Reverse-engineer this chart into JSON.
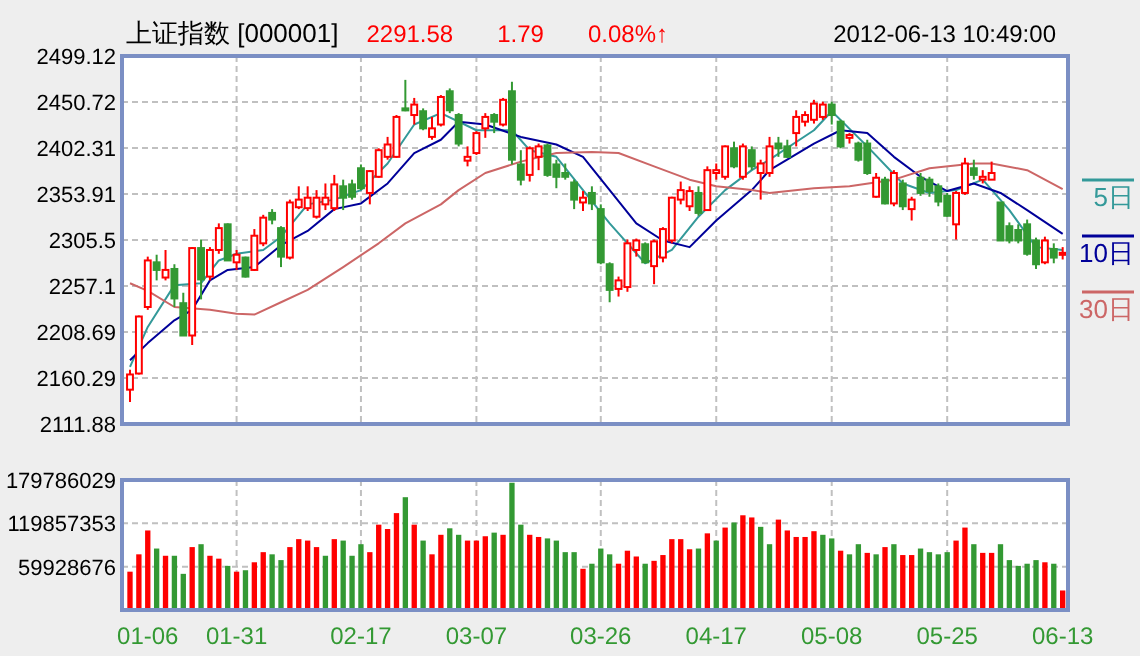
{
  "chart_data": [
    {
      "type": "candlestick",
      "title": "上证指数 [000001]",
      "annotations": [
        "2291.58",
        "1.79",
        "0.08%↑",
        "2012-06-13 10:49:00"
      ],
      "categories": [
        null,
        null,
        null,
        null,
        null,
        null,
        null,
        null,
        null,
        null,
        null,
        null,
        null,
        null,
        null,
        null,
        null,
        null,
        null,
        null,
        null,
        null,
        null,
        null,
        null,
        null,
        null,
        null,
        null,
        null,
        null,
        null,
        null,
        null,
        null,
        null,
        null,
        null,
        null,
        null,
        null,
        null,
        null,
        null,
        null,
        null,
        null,
        null,
        null,
        null,
        null,
        null,
        null,
        null,
        null,
        null,
        null,
        null,
        null,
        null,
        null,
        null,
        null,
        null,
        null,
        null,
        null,
        null,
        null,
        null,
        null,
        null,
        null,
        null,
        null,
        null,
        null,
        null,
        null,
        null,
        null,
        null,
        null,
        null,
        null,
        null,
        null,
        null,
        null,
        null,
        null,
        null,
        null,
        null,
        null,
        null,
        null,
        null,
        null,
        null,
        null,
        null,
        null,
        null,
        null,
        null
      ],
      "ohlc": [
        [
          2148,
          2169,
          2135,
          2164
        ],
        [
          2165,
          2226,
          2164,
          2225
        ],
        [
          2235,
          2288,
          2232,
          2284
        ],
        [
          2282,
          2290,
          2263,
          2274
        ],
        [
          2266,
          2295,
          2263,
          2274
        ],
        [
          2275,
          2280,
          2235,
          2244
        ],
        [
          2239,
          2250,
          2205,
          2205
        ],
        [
          2205,
          2298,
          2195,
          2297
        ],
        [
          2297,
          2306,
          2243,
          2264
        ],
        [
          2267,
          2298,
          2263,
          2295
        ],
        [
          2295,
          2323,
          2291,
          2318
        ],
        [
          2322,
          2323,
          2284,
          2284
        ],
        [
          2282,
          2295,
          2274,
          2290
        ],
        [
          2287,
          2288,
          2266,
          2267
        ],
        [
          2274,
          2317,
          2273,
          2310
        ],
        [
          2302,
          2332,
          2299,
          2329
        ],
        [
          2334,
          2338,
          2322,
          2327
        ],
        [
          2318,
          2320,
          2277,
          2288
        ],
        [
          2287,
          2348,
          2285,
          2345
        ],
        [
          2340,
          2362,
          2338,
          2348
        ],
        [
          2339,
          2362,
          2336,
          2350
        ],
        [
          2330,
          2358,
          2328,
          2350
        ],
        [
          2343,
          2365,
          2337,
          2350
        ],
        [
          2339,
          2374,
          2336,
          2364
        ],
        [
          2362,
          2369,
          2337,
          2350
        ],
        [
          2364,
          2369,
          2348,
          2351
        ],
        [
          2381,
          2385,
          2358,
          2360
        ],
        [
          2355,
          2379,
          2343,
          2378
        ],
        [
          2372,
          2402,
          2371,
          2400
        ],
        [
          2393,
          2414,
          2390,
          2406
        ],
        [
          2393,
          2437,
          2392,
          2435
        ],
        [
          2444,
          2474,
          2441,
          2442
        ],
        [
          2437,
          2455,
          2427,
          2448
        ],
        [
          2441,
          2444,
          2421,
          2423
        ],
        [
          2414,
          2435,
          2411,
          2423
        ],
        [
          2427,
          2458,
          2425,
          2456
        ],
        [
          2462,
          2465,
          2439,
          2442
        ],
        [
          2437,
          2439,
          2404,
          2407
        ],
        [
          2389,
          2404,
          2383,
          2393
        ],
        [
          2397,
          2420,
          2395,
          2418
        ],
        [
          2423,
          2439,
          2413,
          2435
        ],
        [
          2437,
          2439,
          2418,
          2430
        ],
        [
          2427,
          2455,
          2425,
          2453
        ],
        [
          2462,
          2472,
          2385,
          2390
        ],
        [
          2385,
          2400,
          2363,
          2369
        ],
        [
          2374,
          2404,
          2367,
          2402
        ],
        [
          2393,
          2407,
          2379,
          2404
        ],
        [
          2405,
          2407,
          2372,
          2374
        ],
        [
          2385,
          2390,
          2360,
          2372
        ],
        [
          2376,
          2386,
          2369,
          2372
        ],
        [
          2366,
          2369,
          2338,
          2348
        ],
        [
          2345,
          2357,
          2336,
          2350
        ],
        [
          2355,
          2362,
          2337,
          2344
        ],
        [
          2338,
          2343,
          2280,
          2282
        ],
        [
          2280,
          2282,
          2240,
          2253
        ],
        [
          2254,
          2267,
          2246,
          2263
        ],
        [
          2256,
          2306,
          2251,
          2302
        ],
        [
          2295,
          2307,
          2288,
          2305
        ],
        [
          2301,
          2303,
          2281,
          2282
        ],
        [
          2278,
          2306,
          2259,
          2304
        ],
        [
          2287,
          2319,
          2282,
          2317
        ],
        [
          2305,
          2351,
          2302,
          2350
        ],
        [
          2348,
          2367,
          2343,
          2358
        ],
        [
          2341,
          2362,
          2336,
          2357
        ],
        [
          2355,
          2362,
          2331,
          2334
        ],
        [
          2337,
          2383,
          2336,
          2379
        ],
        [
          2376,
          2386,
          2369,
          2379
        ],
        [
          2372,
          2405,
          2369,
          2404
        ],
        [
          2402,
          2409,
          2381,
          2383
        ],
        [
          2372,
          2407,
          2369,
          2404
        ],
        [
          2400,
          2404,
          2379,
          2383
        ],
        [
          2376,
          2390,
          2348,
          2386
        ],
        [
          2376,
          2414,
          2372,
          2404
        ],
        [
          2407,
          2414,
          2393,
          2402
        ],
        [
          2404,
          2411,
          2392,
          2393
        ],
        [
          2418,
          2442,
          2404,
          2435
        ],
        [
          2430,
          2441,
          2425,
          2437
        ],
        [
          2432,
          2453,
          2428,
          2449
        ],
        [
          2435,
          2451,
          2432,
          2448
        ],
        [
          2448,
          2451,
          2427,
          2437
        ],
        [
          2430,
          2432,
          2402,
          2404
        ],
        [
          2413,
          2418,
          2407,
          2416
        ],
        [
          2407,
          2409,
          2388,
          2390
        ],
        [
          2407,
          2411,
          2374,
          2376
        ],
        [
          2351,
          2376,
          2350,
          2371
        ],
        [
          2369,
          2372,
          2343,
          2344
        ],
        [
          2344,
          2379,
          2341,
          2376
        ],
        [
          2365,
          2369,
          2337,
          2341
        ],
        [
          2338,
          2351,
          2326,
          2348
        ],
        [
          2371,
          2376,
          2352,
          2355
        ],
        [
          2369,
          2372,
          2351,
          2357
        ],
        [
          2362,
          2365,
          2341,
          2346
        ],
        [
          2352,
          2355,
          2330,
          2331
        ],
        [
          2322,
          2357,
          2306,
          2355
        ],
        [
          2355,
          2392,
          2353,
          2386
        ],
        [
          2381,
          2390,
          2369,
          2374
        ],
        [
          2369,
          2379,
          2365,
          2372
        ],
        [
          2369,
          2388,
          2369,
          2376
        ],
        [
          2345,
          2345,
          2305,
          2305
        ],
        [
          2320,
          2324,
          2302,
          2305
        ],
        [
          2316,
          2322,
          2302,
          2305
        ],
        [
          2322,
          2327,
          2289,
          2291
        ],
        [
          2305,
          2308,
          2275,
          2280
        ],
        [
          2282,
          2309,
          2280,
          2305
        ],
        [
          2296,
          2302,
          2281,
          2287
        ],
        [
          2290,
          2298,
          2285,
          2292
        ]
      ],
      "colors": [
        "#ff0000",
        "#ff0000",
        "#ff0000",
        "#339933",
        "#ff0000",
        "#339933",
        "#339933",
        "#ff0000",
        "#339933",
        "#ff0000",
        "#ff0000",
        "#339933",
        "#ff0000",
        "#339933",
        "#ff0000",
        "#ff0000",
        "#339933",
        "#339933",
        "#ff0000",
        "#ff0000",
        "#ff0000",
        "#ff0000",
        "#ff0000",
        "#ff0000",
        "#339933",
        "#339933",
        "#339933",
        "#ff0000",
        "#ff0000",
        "#ff0000",
        "#ff0000",
        "#339933",
        "#ff0000",
        "#339933",
        "#ff0000",
        "#ff0000",
        "#339933",
        "#339933",
        "#ff0000",
        "#ff0000",
        "#ff0000",
        "#339933",
        "#ff0000",
        "#339933",
        "#339933",
        "#ff0000",
        "#ff0000",
        "#339933",
        "#339933",
        "#339933",
        "#339933",
        "#ff0000",
        "#339933",
        "#339933",
        "#339933",
        "#ff0000",
        "#ff0000",
        "#ff0000",
        "#339933",
        "#ff0000",
        "#ff0000",
        "#ff0000",
        "#ff0000",
        "#ff0000",
        "#339933",
        "#ff0000",
        "#ff0000",
        "#ff0000",
        "#339933",
        "#ff0000",
        "#339933",
        "#ff0000",
        "#ff0000",
        "#339933",
        "#339933",
        "#ff0000",
        "#ff0000",
        "#ff0000",
        "#ff0000",
        "#339933",
        "#339933",
        "#ff0000",
        "#339933",
        "#339933",
        "#ff0000",
        "#339933",
        "#ff0000",
        "#339933",
        "#ff0000",
        "#339933",
        "#339933",
        "#339933",
        "#339933",
        "#ff0000",
        "#ff0000",
        "#339933",
        "#ff0000",
        "#ff0000",
        "#339933",
        "#339933",
        "#339933",
        "#339933",
        "#339933",
        "#ff0000",
        "#339933",
        "#ff0000"
      ],
      "series": [
        {
          "name": "5日",
          "type": "line",
          "color": "#339999",
          "values": [
            2172,
            null,
            2214,
            null,
            null,
            2258,
            null,
            null,
            2260,
            null,
            2284,
            null,
            2291,
            null,
            null,
            2295,
            null,
            2309,
            null,
            null,
            2343,
            null,
            null,
            2348,
            null,
            null,
            2358,
            null,
            null,
            2386,
            null,
            null,
            2427,
            null,
            null,
            2439,
            null,
            null,
            null,
            2421,
            null,
            null,
            null,
            2421,
            null,
            2400,
            null,
            null,
            2393,
            null,
            null,
            2358,
            null,
            null,
            2323,
            null,
            null,
            null,
            2281,
            null,
            null,
            2295,
            null,
            null,
            2330,
            null,
            null,
            2358,
            null,
            null,
            2379,
            null,
            2390,
            null,
            null,
            null,
            null,
            2421,
            null,
            2441,
            null,
            null,
            null,
            2404,
            null,
            null,
            null,
            2365,
            null,
            null,
            2355,
            null,
            null,
            2358,
            null,
            null,
            2369,
            null,
            null,
            2337,
            null,
            null,
            2298,
            null,
            null,
            2295
          ]
        },
        {
          "name": "10日",
          "type": "line",
          "color": "#000099",
          "values": [
            2179,
            null,
            2197,
            null,
            null,
            2221,
            null,
            2232,
            null,
            2263,
            null,
            2274,
            null,
            null,
            2277,
            null,
            null,
            2300,
            null,
            null,
            2315,
            null,
            null,
            2338,
            null,
            null,
            2344,
            null,
            null,
            2365,
            null,
            null,
            2397,
            null,
            null,
            2411,
            null,
            2430,
            null,
            null,
            2427,
            null,
            null,
            null,
            2414,
            null,
            null,
            null,
            2406,
            null,
            null,
            2393,
            null,
            null,
            2358,
            null,
            null,
            2323,
            null,
            null,
            2305,
            null,
            null,
            2298,
            null,
            null,
            2326,
            null,
            null,
            null,
            2358,
            null,
            2379,
            null,
            null,
            null,
            null,
            2407,
            null,
            null,
            2421,
            null,
            null,
            2418,
            null,
            null,
            2393,
            null,
            null,
            2372,
            null,
            null,
            2357,
            null,
            null,
            2365,
            null,
            null,
            2355,
            null,
            null,
            2337,
            null,
            null,
            null,
            2312
          ]
        },
        {
          "name": "30日",
          "type": "line",
          "color": "#cc6666",
          "values": [
            2260,
            null,
            2252,
            null,
            null,
            2235,
            null,
            null,
            null,
            2232,
            null,
            null,
            2228,
            null,
            2227,
            null,
            null,
            2240,
            null,
            null,
            2253,
            null,
            null,
            null,
            2277,
            null,
            null,
            null,
            2302,
            null,
            null,
            2323,
            null,
            null,
            null,
            2343,
            null,
            2358,
            null,
            null,
            2376,
            null,
            null,
            null,
            2388,
            null,
            null,
            null,
            2397,
            null,
            null,
            null,
            2398,
            null,
            null,
            2397,
            null,
            null,
            null,
            2383,
            null,
            null,
            null,
            2369,
            null,
            null,
            2362,
            null,
            null,
            null,
            2358,
            null,
            2355,
            null,
            null,
            null,
            null,
            2360,
            null,
            null,
            null,
            2362,
            null,
            null,
            null,
            null,
            2369,
            null,
            null,
            null,
            2381,
            null,
            null,
            null,
            null,
            2386,
            null,
            2386,
            null,
            null,
            null,
            2379,
            null,
            null,
            null,
            2359
          ]
        }
      ],
      "ylim": [
        2111.88,
        2499.12
      ],
      "yticks": [
        2111.88,
        2160.29,
        2208.69,
        2257.1,
        2305.5,
        2353.91,
        2402.31,
        2450.72,
        2499.12
      ],
      "tick_labels": "y",
      "grid": true,
      "legend": "right"
    },
    {
      "type": "bar",
      "categories": [
        null,
        null,
        "01-06",
        null,
        null,
        null,
        null,
        null,
        null,
        null,
        null,
        null,
        "01-31",
        null,
        null,
        null,
        null,
        null,
        null,
        null,
        null,
        null,
        null,
        null,
        null,
        null,
        "02-17",
        null,
        null,
        null,
        null,
        null,
        null,
        null,
        null,
        null,
        null,
        null,
        null,
        "03-07",
        null,
        null,
        null,
        null,
        null,
        null,
        null,
        null,
        null,
        null,
        null,
        null,
        null,
        "03-26",
        null,
        null,
        null,
        null,
        null,
        null,
        null,
        null,
        null,
        null,
        null,
        null,
        "04-17",
        null,
        null,
        null,
        null,
        null,
        null,
        null,
        null,
        null,
        null,
        null,
        null,
        "05-08",
        null,
        null,
        null,
        null,
        null,
        null,
        null,
        null,
        null,
        null,
        null,
        null,
        "05-25",
        null,
        null,
        null,
        null,
        null,
        null,
        null,
        null,
        null,
        null,
        null,
        null,
        "06-13"
      ],
      "values": [
        53000000,
        77000000,
        110000000,
        85000000,
        75000000,
        75000000,
        50000000,
        87000000,
        91000000,
        75000000,
        71000000,
        61000000,
        53000000,
        55000000,
        66000000,
        80000000,
        77000000,
        69000000,
        87000000,
        98000000,
        96000000,
        87000000,
        75000000,
        98000000,
        96000000,
        75000000,
        91000000,
        80000000,
        118000000,
        112000000,
        134000000,
        156000000,
        118000000,
        96000000,
        77000000,
        104000000,
        113000000,
        104000000,
        96000000,
        96000000,
        102000000,
        107000000,
        104000000,
        176000000,
        118000000,
        104000000,
        101000000,
        99000000,
        96000000,
        80000000,
        80000000,
        57000000,
        64000000,
        85000000,
        77000000,
        64000000,
        82000000,
        74000000,
        64000000,
        68000000,
        76000000,
        98000000,
        98000000,
        84000000,
        85000000,
        106000000,
        96000000,
        114000000,
        121000000,
        131000000,
        128000000,
        115000000,
        91000000,
        125000000,
        110000000,
        101000000,
        101000000,
        109000000,
        104000000,
        99000000,
        82000000,
        77000000,
        91000000,
        79000000,
        77000000,
        87000000,
        91000000,
        76000000,
        76000000,
        85000000,
        80000000,
        77000000,
        80000000,
        96000000,
        114000000,
        91000000,
        79000000,
        79000000,
        91000000,
        69000000,
        61000000,
        64000000,
        69000000,
        66000000,
        64000000,
        27000000
      ],
      "colors": [
        "#ff0000",
        "#ff0000",
        "#ff0000",
        "#339933",
        "#ff0000",
        "#339933",
        "#339933",
        "#ff0000",
        "#339933",
        "#ff0000",
        "#ff0000",
        "#339933",
        "#ff0000",
        "#339933",
        "#ff0000",
        "#ff0000",
        "#339933",
        "#339933",
        "#ff0000",
        "#ff0000",
        "#ff0000",
        "#ff0000",
        "#339933",
        "#ff0000",
        "#339933",
        "#339933",
        "#339933",
        "#ff0000",
        "#ff0000",
        "#ff0000",
        "#ff0000",
        "#339933",
        "#ff0000",
        "#339933",
        "#ff0000",
        "#ff0000",
        "#339933",
        "#339933",
        "#ff0000",
        "#ff0000",
        "#ff0000",
        "#339933",
        "#ff0000",
        "#339933",
        "#339933",
        "#ff0000",
        "#ff0000",
        "#339933",
        "#339933",
        "#339933",
        "#339933",
        "#ff0000",
        "#339933",
        "#339933",
        "#339933",
        "#ff0000",
        "#ff0000",
        "#ff0000",
        "#339933",
        "#ff0000",
        "#ff0000",
        "#ff0000",
        "#ff0000",
        "#ff0000",
        "#339933",
        "#ff0000",
        "#339933",
        "#ff0000",
        "#339933",
        "#ff0000",
        "#ff0000",
        "#339933",
        "#339933",
        "#ff0000",
        "#ff0000",
        "#ff0000",
        "#ff0000",
        "#ff0000",
        "#339933",
        "#339933",
        "#ff0000",
        "#339933",
        "#339933",
        "#ff0000",
        "#339933",
        "#ff0000",
        "#339933",
        "#ff0000",
        "#ff0000",
        "#339933",
        "#339933",
        "#339933",
        "#339933",
        "#ff0000",
        "#ff0000",
        "#339933",
        "#ff0000",
        "#ff0000",
        "#339933",
        "#339933",
        "#339933",
        "#339933",
        "#339933",
        "#ff0000",
        "#339933",
        "#ff0000"
      ],
      "ylim": [
        0,
        179786029
      ],
      "yticks": [
        59928676,
        119857353,
        179786029
      ],
      "grid": true
    }
  ]
}
